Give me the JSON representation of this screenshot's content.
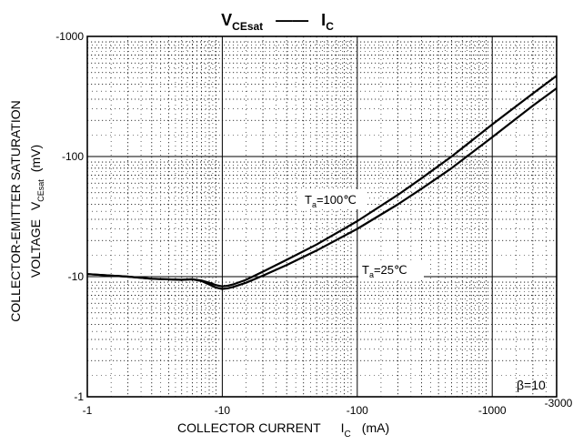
{
  "chart_data": {
    "type": "line",
    "title": {
      "main": "V",
      "main_sub": "CEsat",
      "sep": "——",
      "right": "I",
      "right_sub": "C"
    },
    "x_scale": "log",
    "y_scale": "log",
    "xlim": [
      -1,
      -3000
    ],
    "ylim": [
      -1,
      -1000
    ],
    "x_ticks": [
      {
        "value": -1,
        "label": "-1"
      },
      {
        "value": -10,
        "label": "-10"
      },
      {
        "value": -100,
        "label": "-100"
      },
      {
        "value": -1000,
        "label": "-1000"
      },
      {
        "value": -3000,
        "label": "-3000"
      }
    ],
    "y_ticks": [
      {
        "value": -1,
        "label": "-1"
      },
      {
        "value": -10,
        "label": "-10"
      },
      {
        "value": -100,
        "label": "-100"
      },
      {
        "value": -1000,
        "label": "-1000"
      }
    ],
    "xlabel": {
      "text": "COLLECTOR CURRENT",
      "sym": "I",
      "sub": "C",
      "unit": "(mA)"
    },
    "ylabel": {
      "line1": "COLLECTOR-EMITTER SATURATION",
      "line2": "VOLTAGE",
      "sym": "V",
      "sub": "CEsat",
      "unit": "(mV)"
    },
    "grid": "dotted minor, solid major",
    "annotation": "β=10",
    "series": [
      {
        "name": "Ta=100℃",
        "name_parts": {
          "t": "T",
          "sub": "a",
          "rest": "=100℃"
        },
        "x": [
          -1,
          -2,
          -3,
          -5,
          -6,
          -7,
          -8,
          -9,
          -10,
          -11,
          -12,
          -15,
          -20,
          -30,
          -50,
          -100,
          -200,
          -300,
          -500,
          -1000,
          -2000,
          -3000
        ],
        "y": [
          -10.5,
          -10.0,
          -9.6,
          -9.4,
          -9.5,
          -9.3,
          -8.9,
          -8.5,
          -8.3,
          -8.4,
          -8.6,
          -9.4,
          -11.0,
          -13.8,
          -18.5,
          -29.0,
          -48.0,
          -66.0,
          -100.0,
          -185.0,
          -335.0,
          -470.0
        ]
      },
      {
        "name": "Ta=25℃",
        "name_parts": {
          "t": "T",
          "sub": "a",
          "rest": "=25℃"
        },
        "x": [
          -1,
          -2,
          -3,
          -5,
          -6,
          -7,
          -8,
          -9,
          -10,
          -11,
          -12,
          -15,
          -20,
          -30,
          -50,
          -100,
          -200,
          -300,
          -500,
          -1000,
          -2000,
          -3000
        ],
        "y": [
          -10.5,
          -10.0,
          -9.6,
          -9.4,
          -9.5,
          -9.2,
          -8.6,
          -8.1,
          -7.9,
          -8.0,
          -8.2,
          -8.9,
          -10.2,
          -12.5,
          -16.5,
          -25.0,
          -40.0,
          -54.0,
          -80.0,
          -145.0,
          -265.0,
          -370.0
        ]
      }
    ]
  }
}
